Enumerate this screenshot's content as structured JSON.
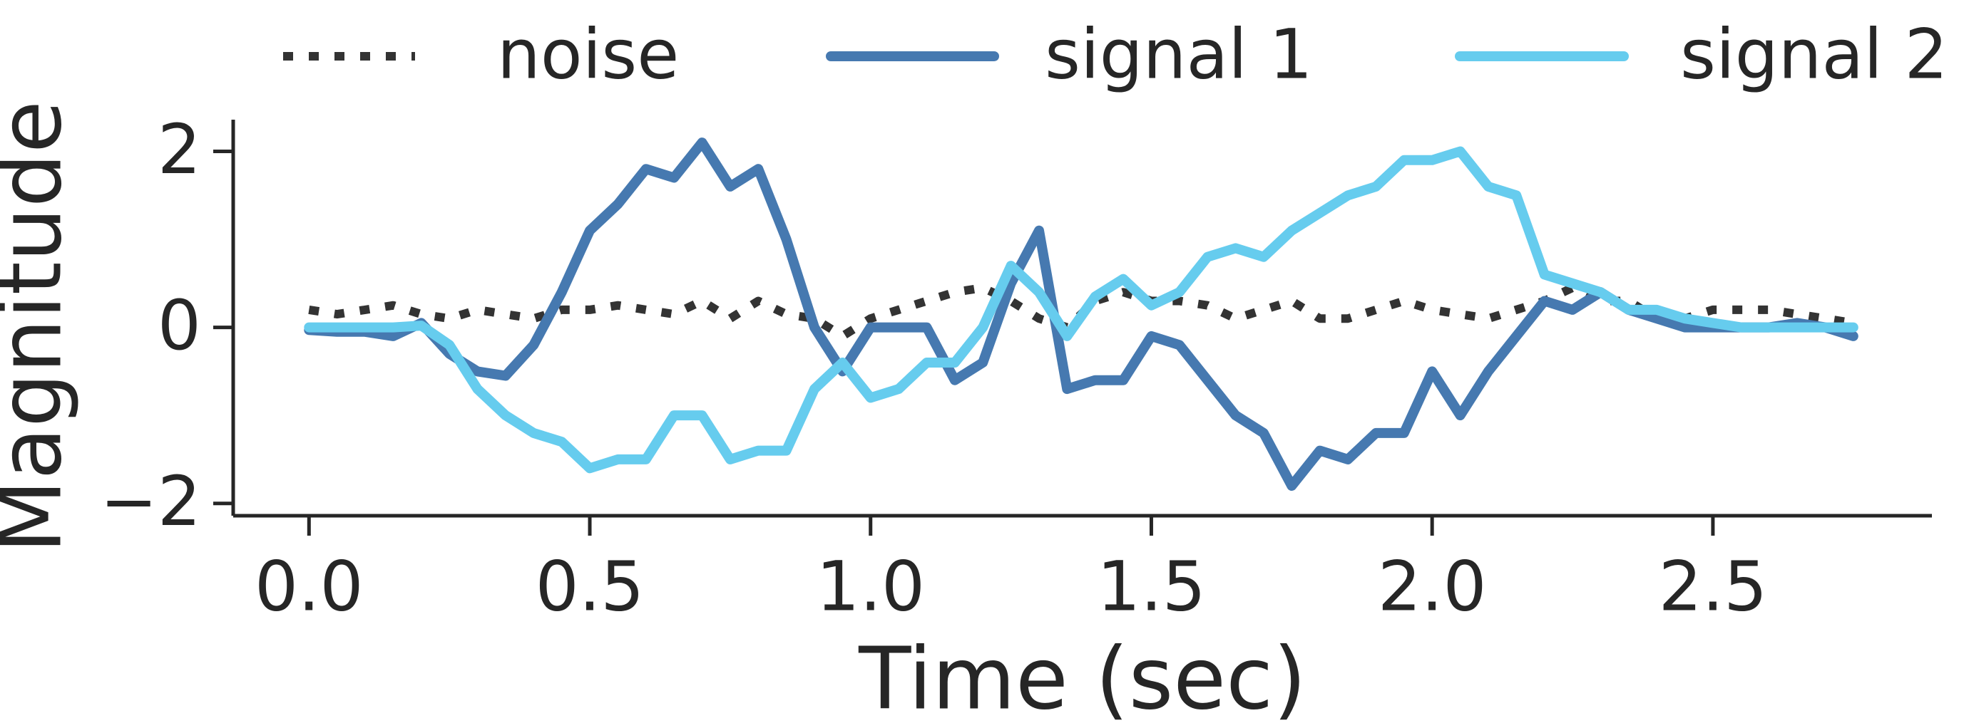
{
  "chart_data": {
    "type": "line",
    "xlabel": "Time (sec)",
    "ylabel": "Magnitude",
    "xlim": [
      -0.135,
      2.89
    ],
    "ylim": [
      -2.14,
      2.36
    ],
    "xticks": [
      {
        "value": 0,
        "label": "0.0"
      },
      {
        "value": 0.5,
        "label": "0.5"
      },
      {
        "value": 1,
        "label": "1.0"
      },
      {
        "value": 1.5,
        "label": "1.5"
      },
      {
        "value": 2,
        "label": "2.0"
      },
      {
        "value": 2.5,
        "label": "2.5"
      }
    ],
    "yticks": [
      {
        "value": -2,
        "label": "−2"
      },
      0,
      2
    ],
    "x": [
      0,
      0.05,
      0.1,
      0.15,
      0.2,
      0.25,
      0.3,
      0.35,
      0.4,
      0.45,
      0.5,
      0.55,
      0.6,
      0.65,
      0.7,
      0.75,
      0.8,
      0.85,
      0.9,
      0.95,
      1.0,
      1.05,
      1.1,
      1.15,
      1.2,
      1.25,
      1.3,
      1.35,
      1.4,
      1.45,
      1.5,
      1.55,
      1.6,
      1.65,
      1.7,
      1.75,
      1.8,
      1.85,
      1.9,
      1.95,
      2.0,
      2.05,
      2.1,
      2.15,
      2.2,
      2.25,
      2.3,
      2.35,
      2.4,
      2.45,
      2.5,
      2.55,
      2.6,
      2.65,
      2.7,
      2.75
    ],
    "legend": "top",
    "series": [
      {
        "name": "noise",
        "color": "#333333",
        "dash": "dotted",
        "values": [
          0.2,
          0.15,
          0.2,
          0.25,
          0.15,
          0.1,
          0.2,
          0.15,
          0.1,
          0.2,
          0.2,
          0.25,
          0.2,
          0.15,
          0.3,
          0.1,
          0.3,
          0.15,
          0.1,
          -0.1,
          0.1,
          0.2,
          0.3,
          0.4,
          0.45,
          0.3,
          0.1,
          0.0,
          0.3,
          0.4,
          0.3,
          0.3,
          0.25,
          0.1,
          0.2,
          0.3,
          0.1,
          0.1,
          0.2,
          0.3,
          0.2,
          0.15,
          0.1,
          0.2,
          0.3,
          0.45,
          0.3,
          0.3,
          0.1,
          0.1,
          0.2,
          0.2,
          0.2,
          0.15,
          0.1,
          0.05
        ]
      },
      {
        "name": "signal 1",
        "color": "#4679b0",
        "dash": "solid",
        "values": [
          -0.03,
          -0.05,
          -0.05,
          -0.1,
          0.05,
          -0.3,
          -0.5,
          -0.55,
          -0.2,
          0.4,
          1.1,
          1.4,
          1.8,
          1.7,
          2.1,
          1.6,
          1.8,
          1.0,
          0.0,
          -0.5,
          0.0,
          0.0,
          0.0,
          -0.6,
          -0.4,
          0.5,
          1.1,
          -0.7,
          -0.6,
          -0.6,
          -0.1,
          -0.2,
          -0.6,
          -1.0,
          -1.2,
          -1.8,
          -1.4,
          -1.5,
          -1.2,
          -1.2,
          -0.5,
          -1.0,
          -0.5,
          -0.1,
          0.3,
          0.2,
          0.4,
          0.2,
          0.1,
          0.0,
          0.0,
          0.0,
          0.0,
          0.05,
          0.0,
          -0.1
        ]
      },
      {
        "name": "signal 2",
        "color": "#66ccee",
        "dash": "solid",
        "values": [
          0,
          0,
          0,
          0,
          0.02,
          -0.2,
          -0.7,
          -1.0,
          -1.2,
          -1.3,
          -1.6,
          -1.5,
          -1.5,
          -1.0,
          -1.0,
          -1.5,
          -1.4,
          -1.4,
          -0.7,
          -0.4,
          -0.8,
          -0.7,
          -0.4,
          -0.4,
          0.0,
          0.7,
          0.4,
          -0.1,
          0.35,
          0.55,
          0.25,
          0.4,
          0.8,
          0.9,
          0.8,
          1.1,
          1.3,
          1.5,
          1.6,
          1.9,
          1.9,
          2.0,
          1.6,
          1.5,
          0.6,
          0.5,
          0.4,
          0.2,
          0.2,
          0.1,
          0.05,
          0,
          0,
          0,
          0,
          0
        ]
      }
    ]
  }
}
